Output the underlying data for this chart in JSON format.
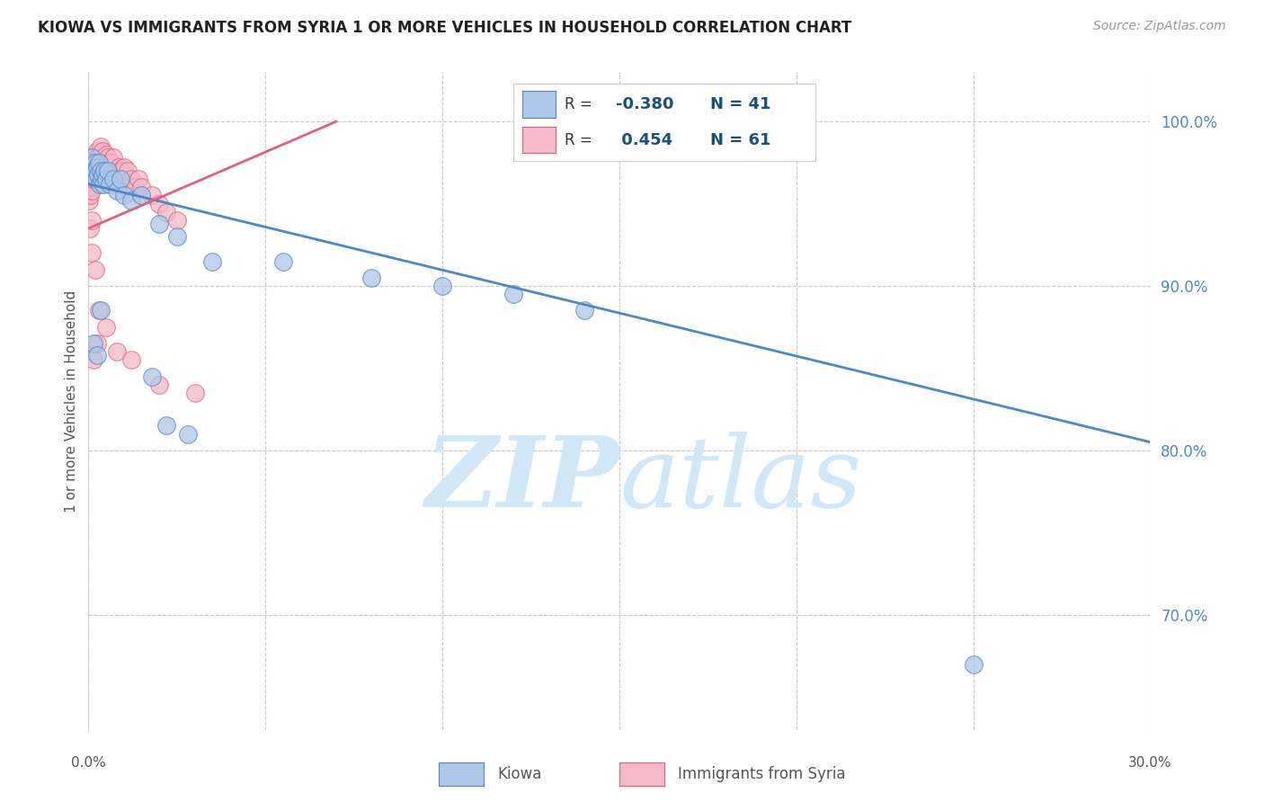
{
  "title": "KIOWA VS IMMIGRANTS FROM SYRIA 1 OR MORE VEHICLES IN HOUSEHOLD CORRELATION CHART",
  "source": "Source: ZipAtlas.com",
  "ylabel": "1 or more Vehicles in Household",
  "xmin": 0.0,
  "xmax": 30.0,
  "ymin": 63.0,
  "ymax": 103.0,
  "kiowa_R": -0.38,
  "kiowa_N": 41,
  "syria_R": 0.454,
  "syria_N": 61,
  "kiowa_color": "#aec6e8",
  "syria_color": "#f4b8c8",
  "kiowa_line_color": "#4f86c6",
  "syria_line_color": "#e06080",
  "legend_border_color": "#cccccc",
  "legend_text_color": "#1a5276",
  "watermark_color": "#d0e8f8",
  "background_color": "#ffffff",
  "grid_color": "#c8c8c8",
  "kiowa_line_x0": 0.0,
  "kiowa_line_y0": 96.2,
  "kiowa_line_x1": 30.0,
  "kiowa_line_y1": 80.5,
  "syria_line_x0": 0.0,
  "syria_line_y0": 93.5,
  "syria_line_x1": 7.0,
  "syria_line_y1": 100.0,
  "kiowa_x": [
    0.05,
    0.08,
    0.1,
    0.12,
    0.15,
    0.18,
    0.2,
    0.22,
    0.25,
    0.28,
    0.3,
    0.32,
    0.35,
    0.38,
    0.4,
    0.42,
    0.45,
    0.5,
    0.55,
    0.6,
    0.7,
    0.8,
    0.9,
    1.0,
    1.2,
    1.5,
    2.0,
    2.5,
    3.5,
    5.5,
    8.0,
    10.0,
    12.0,
    14.0,
    0.15,
    0.25,
    0.35,
    2.2,
    2.8,
    25.0,
    1.8
  ],
  "kiowa_y": [
    97.5,
    97.2,
    97.8,
    97.0,
    96.8,
    97.5,
    97.0,
    96.5,
    97.2,
    96.8,
    97.5,
    96.2,
    97.0,
    96.5,
    96.8,
    96.2,
    97.0,
    96.5,
    97.0,
    96.2,
    96.5,
    95.8,
    96.5,
    95.5,
    95.2,
    95.5,
    93.8,
    93.0,
    91.5,
    91.5,
    90.5,
    90.0,
    89.5,
    88.5,
    86.5,
    85.8,
    88.5,
    81.5,
    81.0,
    67.0,
    84.5
  ],
  "syria_x": [
    0.02,
    0.04,
    0.06,
    0.08,
    0.1,
    0.1,
    0.12,
    0.15,
    0.15,
    0.18,
    0.2,
    0.2,
    0.22,
    0.25,
    0.25,
    0.28,
    0.3,
    0.3,
    0.32,
    0.35,
    0.35,
    0.38,
    0.4,
    0.4,
    0.42,
    0.45,
    0.5,
    0.5,
    0.55,
    0.6,
    0.6,
    0.65,
    0.7,
    0.7,
    0.75,
    0.8,
    0.85,
    0.9,
    1.0,
    1.0,
    1.1,
    1.2,
    1.3,
    1.4,
    1.5,
    1.8,
    2.0,
    2.2,
    2.5,
    0.05,
    0.08,
    0.1,
    0.2,
    0.3,
    0.5,
    0.8,
    1.2,
    2.0,
    3.0,
    0.15,
    0.25
  ],
  "syria_y": [
    95.2,
    95.5,
    96.0,
    96.5,
    97.0,
    95.8,
    97.2,
    97.8,
    96.5,
    97.5,
    97.8,
    96.8,
    97.2,
    98.2,
    97.0,
    97.5,
    97.8,
    96.5,
    98.0,
    98.5,
    97.2,
    97.8,
    98.2,
    97.0,
    97.5,
    97.2,
    98.0,
    97.2,
    97.8,
    97.5,
    96.8,
    97.5,
    97.8,
    96.5,
    97.0,
    96.8,
    97.2,
    97.0,
    96.5,
    97.2,
    97.0,
    96.5,
    96.0,
    96.5,
    96.0,
    95.5,
    95.0,
    94.5,
    94.0,
    93.5,
    94.0,
    92.0,
    91.0,
    88.5,
    87.5,
    86.0,
    85.5,
    84.0,
    83.5,
    85.5,
    86.5
  ]
}
